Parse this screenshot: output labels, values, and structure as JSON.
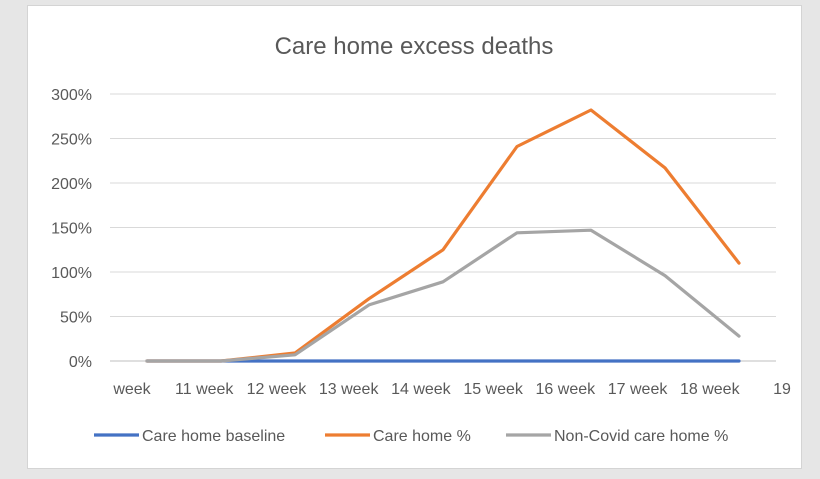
{
  "chart_data": {
    "type": "line",
    "title": "Care home excess deaths",
    "xlabel": "",
    "ylabel": "",
    "categories": [
      "week 11",
      "week 12",
      "week 13",
      "week 14",
      "week 15",
      "week 16",
      "week 17",
      "week 18",
      "week 19"
    ],
    "x_tick_labels": [
      "week",
      "11 week",
      "12 week",
      "13 week",
      "14 week",
      "15 week",
      "16 week",
      "17 week",
      "18 week",
      "19"
    ],
    "y_ticks": [
      "0%",
      "50%",
      "100%",
      "150%",
      "200%",
      "250%",
      "300%"
    ],
    "ylim": [
      0,
      300
    ],
    "grid": true,
    "legend_position": "bottom",
    "series": [
      {
        "name": "Care home baseline",
        "color": "#4472c4",
        "values": [
          0,
          0,
          0,
          0,
          0,
          0,
          0,
          0,
          0
        ]
      },
      {
        "name": "Care home %",
        "color": "#ed7d31",
        "values": [
          0,
          0,
          9,
          70,
          125,
          241,
          282,
          217,
          110
        ]
      },
      {
        "name": "Non-Covid care home %",
        "color": "#a5a5a5",
        "values": [
          0,
          0,
          7,
          63,
          89,
          144,
          147,
          96,
          28
        ]
      }
    ]
  }
}
